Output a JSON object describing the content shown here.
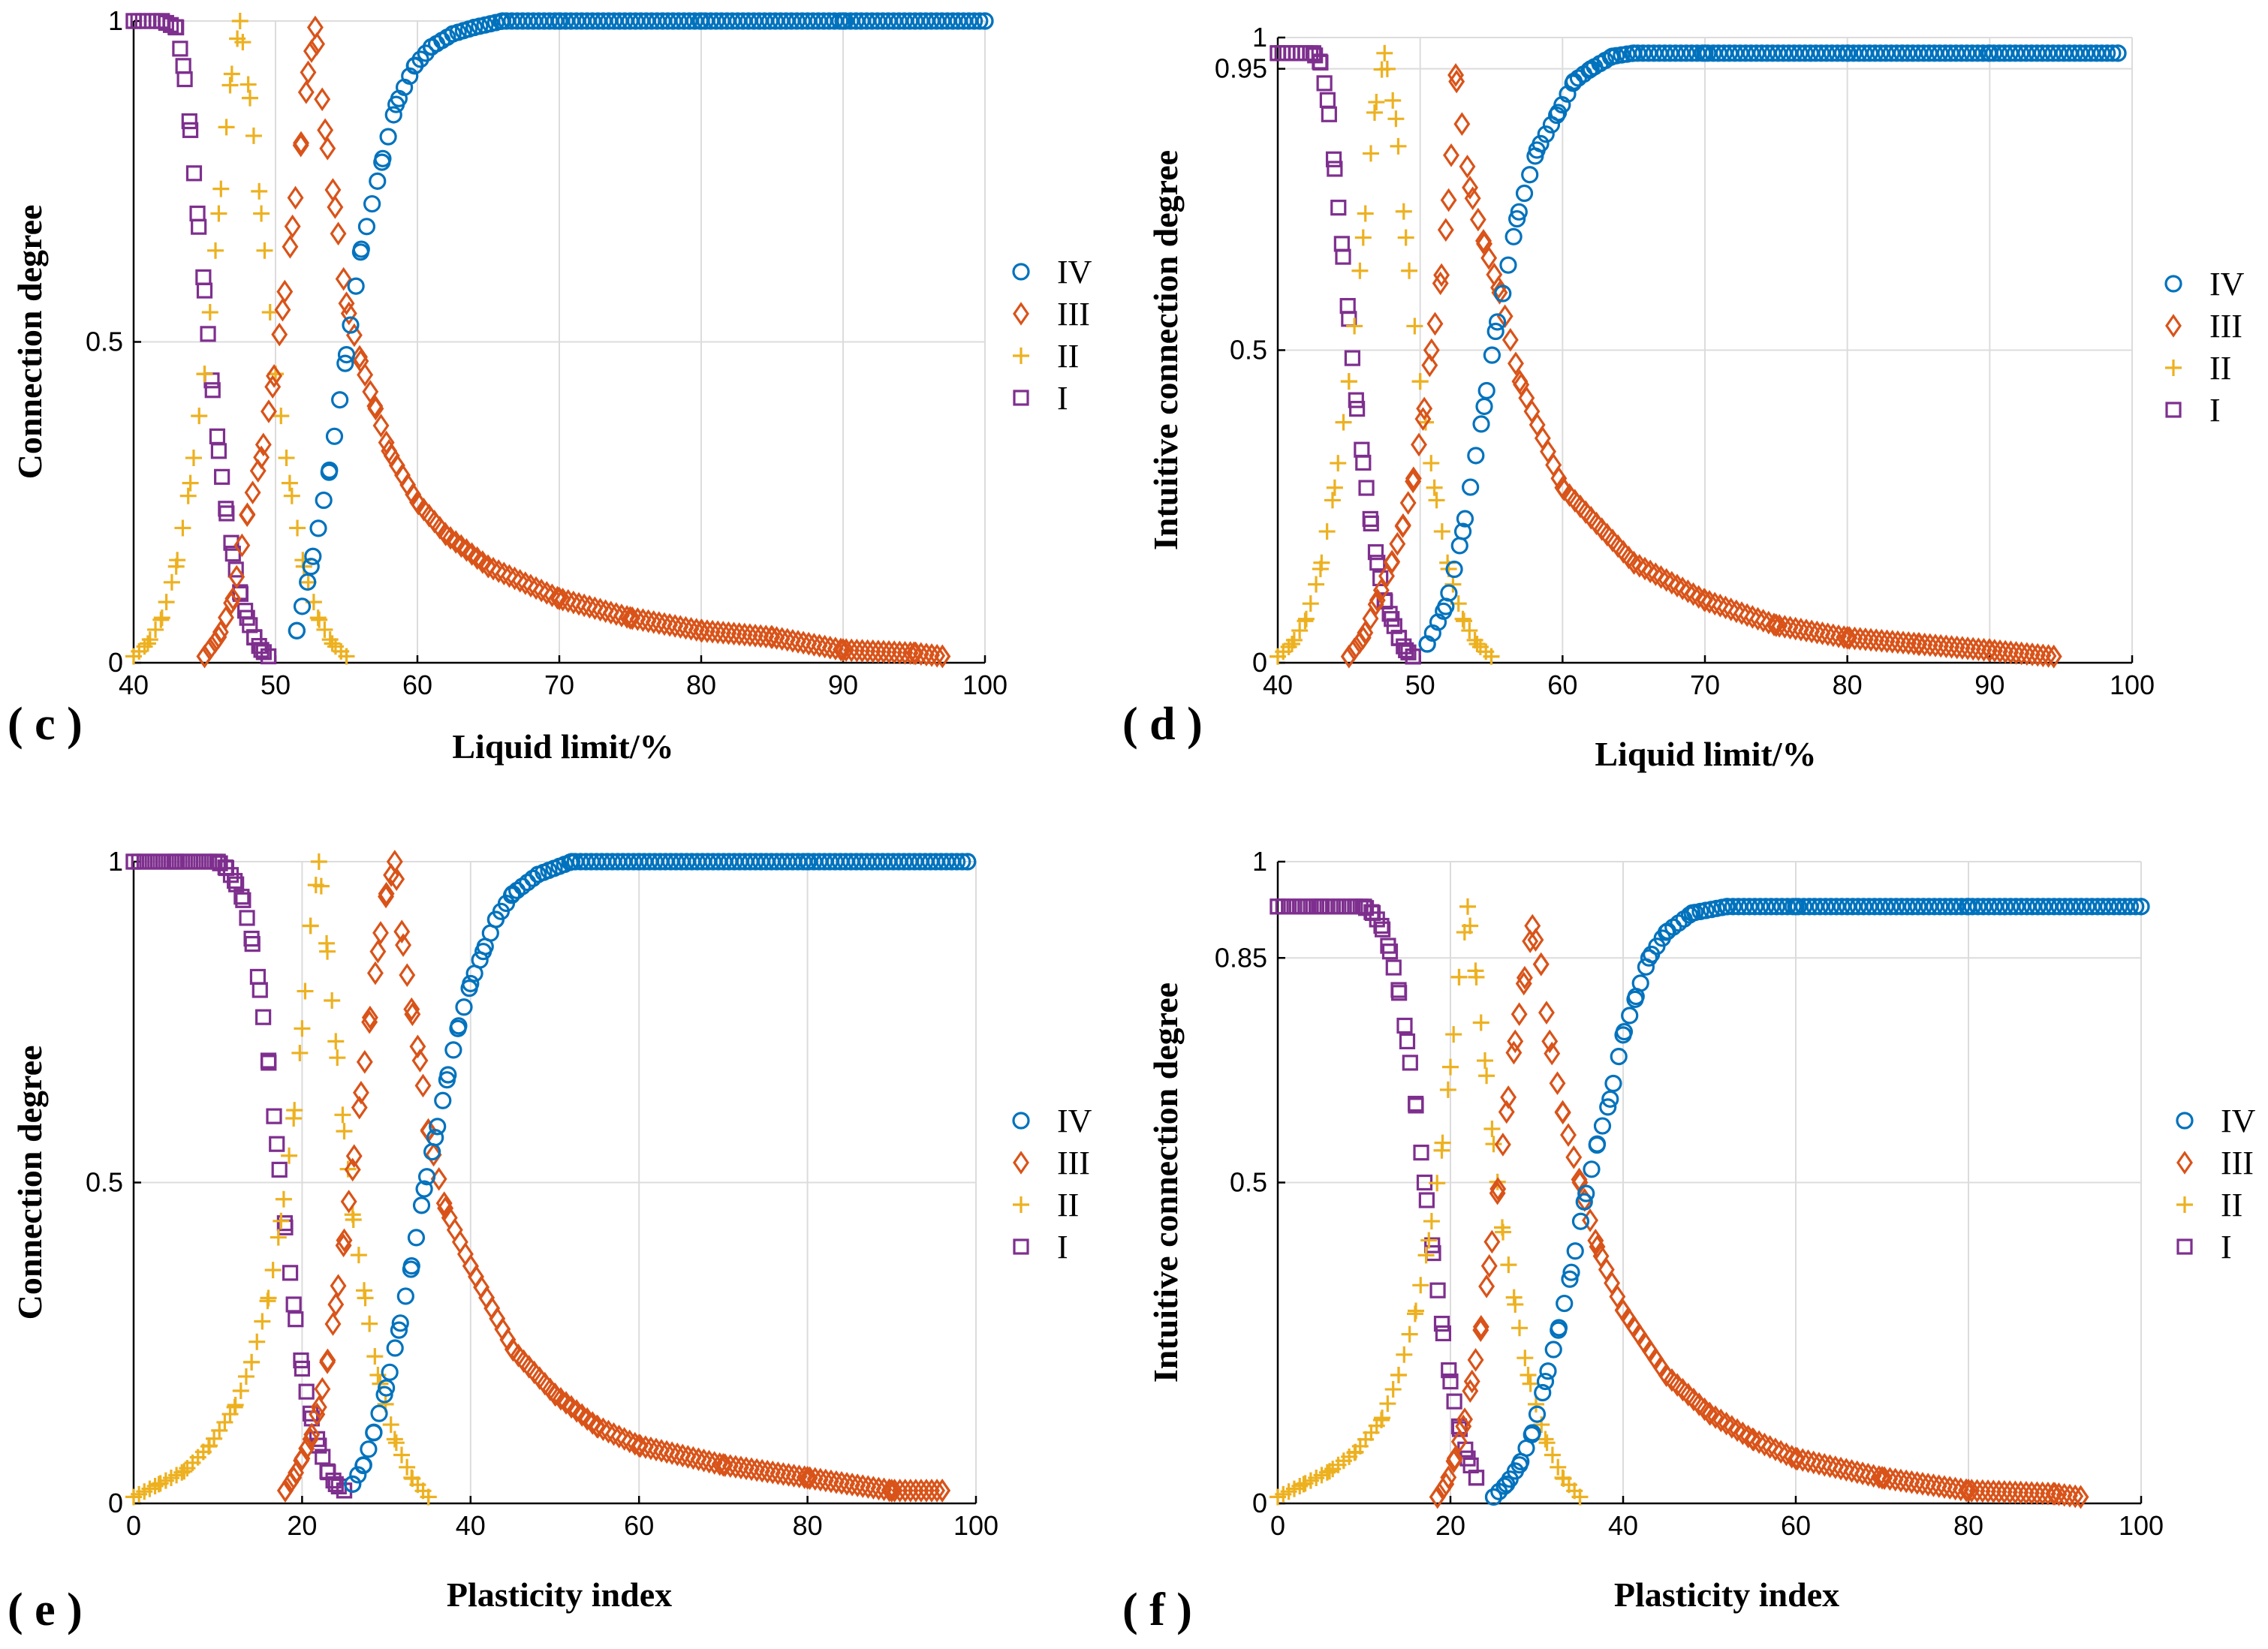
{
  "figure": {
    "legend_order": [
      "IV",
      "III",
      "II",
      "I"
    ],
    "series_styles": {
      "IV": {
        "marker": "circle",
        "color": "#0072BD"
      },
      "III": {
        "marker": "diamond",
        "color": "#D95319"
      },
      "II": {
        "marker": "plus",
        "color": "#EDB120"
      },
      "I": {
        "marker": "square",
        "color": "#7E2F8E"
      }
    }
  },
  "chart_data": [
    {
      "panel": "( c )",
      "type": "scatter",
      "xlabel": "Liquid limit/%",
      "ylabel": "Connection degree",
      "xlim": [
        40,
        100
      ],
      "ylim": [
        0,
        1
      ],
      "xticks": [
        40,
        50,
        60,
        70,
        80,
        90,
        100
      ],
      "yticks": [
        0,
        0.5,
        1
      ],
      "grid": true,
      "legend_position": "right-middle",
      "series": [
        {
          "name": "IV",
          "x": [
            51.5,
            52.5,
            53.8,
            55.0,
            56.0,
            57.5,
            58.5,
            59.8,
            61.0,
            62.5,
            64.0,
            66.0,
            70.0,
            80.0,
            90.0,
            100.0
          ],
          "y": [
            0.05,
            0.15,
            0.3,
            0.48,
            0.64,
            0.78,
            0.87,
            0.93,
            0.96,
            0.98,
            0.99,
            1.0,
            1.0,
            1.0,
            1.0,
            1.0
          ]
        },
        {
          "name": "III",
          "x": [
            45.0,
            46.0,
            47.0,
            48.0,
            49.0,
            49.8,
            50.5,
            51.2,
            51.8,
            52.3,
            52.8,
            53.5,
            54.2,
            55.0,
            56.0,
            57.0,
            58.0,
            60.0,
            62.0,
            65.0,
            70.0,
            75.0,
            80.0,
            85.0,
            90.0,
            95.0,
            97.0
          ],
          "y": [
            0.01,
            0.04,
            0.1,
            0.23,
            0.32,
            0.43,
            0.55,
            0.68,
            0.81,
            0.92,
            0.99,
            0.83,
            0.71,
            0.56,
            0.47,
            0.4,
            0.33,
            0.25,
            0.2,
            0.15,
            0.1,
            0.07,
            0.05,
            0.04,
            0.02,
            0.015,
            0.01
          ]
        },
        {
          "name": "II",
          "x": [
            40.0,
            41.0,
            42.0,
            43.0,
            44.0,
            45.0,
            46.0,
            46.8,
            47.5,
            48.2,
            49.0,
            50.0,
            51.0,
            52.0,
            53.0,
            54.0,
            55.0
          ],
          "y": [
            0.01,
            0.03,
            0.07,
            0.15,
            0.28,
            0.45,
            0.7,
            0.9,
            1.0,
            0.88,
            0.7,
            0.45,
            0.28,
            0.15,
            0.07,
            0.03,
            0.01
          ]
        },
        {
          "name": "I",
          "x": [
            40.0,
            42.0,
            43.0,
            43.5,
            44.0,
            44.5,
            45.0,
            45.5,
            46.0,
            46.5,
            47.0,
            47.5,
            48.0,
            48.5,
            49.0,
            49.5
          ],
          "y": [
            1.0,
            1.0,
            0.99,
            0.93,
            0.83,
            0.7,
            0.58,
            0.44,
            0.33,
            0.24,
            0.17,
            0.11,
            0.07,
            0.04,
            0.02,
            0.01
          ]
        }
      ]
    },
    {
      "panel": "( d )",
      "type": "scatter",
      "xlabel": "Liquid limit/%",
      "ylabel": "Intuitive connection degree",
      "xlim": [
        40,
        100
      ],
      "ylim": [
        0,
        1
      ],
      "xticks": [
        40,
        50,
        60,
        70,
        80,
        90,
        100
      ],
      "yticks": [
        0,
        0.5,
        0.95,
        1
      ],
      "grid": true,
      "legend_position": "right-middle",
      "series": [
        {
          "name": "IV",
          "x": [
            50.5,
            51.8,
            53.0,
            54.5,
            55.3,
            56.8,
            58.2,
            59.7,
            60.8,
            62.0,
            63.5,
            65.0,
            70.0,
            80.0,
            90.0,
            99.0
          ],
          "y": [
            0.03,
            0.09,
            0.21,
            0.41,
            0.53,
            0.71,
            0.82,
            0.88,
            0.93,
            0.95,
            0.97,
            0.975,
            0.975,
            0.975,
            0.975,
            0.975
          ]
        },
        {
          "name": "III",
          "x": [
            45.0,
            46.0,
            47.0,
            48.0,
            48.8,
            49.5,
            50.2,
            50.8,
            51.5,
            52.0,
            52.5,
            53.5,
            54.5,
            55.5,
            57.0,
            60.0,
            65.0,
            70.0,
            75.0,
            80.0,
            85.0,
            90.0,
            94.5
          ],
          "y": [
            0.01,
            0.04,
            0.1,
            0.16,
            0.22,
            0.29,
            0.39,
            0.5,
            0.62,
            0.74,
            0.94,
            0.76,
            0.67,
            0.6,
            0.45,
            0.28,
            0.16,
            0.1,
            0.06,
            0.04,
            0.03,
            0.02,
            0.01
          ]
        },
        {
          "name": "II",
          "x": [
            40.0,
            41.0,
            42.0,
            43.0,
            44.0,
            45.0,
            46.0,
            46.8,
            47.5,
            48.3,
            49.0,
            50.0,
            51.0,
            52.0,
            53.0,
            54.0,
            55.0
          ],
          "y": [
            0.01,
            0.03,
            0.07,
            0.15,
            0.28,
            0.45,
            0.68,
            0.88,
            0.975,
            0.87,
            0.68,
            0.45,
            0.28,
            0.15,
            0.07,
            0.03,
            0.01
          ]
        },
        {
          "name": "I",
          "x": [
            40.0,
            42.5,
            43.0,
            43.5,
            44.0,
            44.5,
            45.0,
            45.5,
            46.0,
            46.5,
            47.0,
            47.5,
            48.0,
            48.5,
            49.0,
            49.5
          ],
          "y": [
            0.975,
            0.975,
            0.96,
            0.9,
            0.79,
            0.67,
            0.55,
            0.42,
            0.32,
            0.23,
            0.16,
            0.1,
            0.07,
            0.04,
            0.02,
            0.01
          ]
        }
      ]
    },
    {
      "panel": "( e )",
      "type": "scatter",
      "xlabel": "Plasticity index",
      "ylabel": "Connection degree",
      "xlim": [
        0,
        100
      ],
      "ylim": [
        0,
        1
      ],
      "xticks": [
        0,
        20,
        40,
        60,
        80,
        100
      ],
      "yticks": [
        0,
        0.5,
        1
      ],
      "grid": true,
      "legend_position": "right-middle",
      "series": [
        {
          "name": "IV",
          "x": [
            26.0,
            27.3,
            28.5,
            30.0,
            31.5,
            33.0,
            34.5,
            35.8,
            37.2,
            38.5,
            40.0,
            41.5,
            43.0,
            45.0,
            48.0,
            52.0,
            60.0,
            80.0,
            99.0
          ],
          "y": [
            0.03,
            0.06,
            0.11,
            0.18,
            0.27,
            0.37,
            0.49,
            0.57,
            0.66,
            0.74,
            0.81,
            0.86,
            0.91,
            0.95,
            0.98,
            1.0,
            1.0,
            1.0,
            1.0
          ]
        },
        {
          "name": "III",
          "x": [
            18.0,
            19.0,
            20.0,
            21.0,
            22.0,
            23.0,
            24.0,
            25.0,
            26.0,
            27.0,
            28.0,
            29.0,
            30.0,
            31.0,
            32.0,
            33.0,
            34.0,
            35.0,
            37.0,
            40.0,
            45.0,
            50.0,
            55.0,
            60.0,
            70.0,
            80.0,
            90.0,
            96.0
          ],
          "y": [
            0.02,
            0.04,
            0.07,
            0.1,
            0.15,
            0.22,
            0.31,
            0.41,
            0.52,
            0.64,
            0.75,
            0.86,
            0.95,
            1.0,
            0.87,
            0.77,
            0.69,
            0.58,
            0.46,
            0.37,
            0.24,
            0.17,
            0.12,
            0.09,
            0.06,
            0.04,
            0.02,
            0.02
          ]
        },
        {
          "name": "II",
          "x": [
            0.0,
            3.0,
            6.0,
            9.0,
            12.0,
            14.0,
            16.0,
            17.5,
            19.0,
            20.0,
            21.0,
            22.0,
            23.0,
            24.0,
            25.0,
            26.0,
            27.5,
            29.0,
            31.0,
            33.0,
            35.0
          ],
          "y": [
            0.01,
            0.03,
            0.05,
            0.09,
            0.15,
            0.22,
            0.32,
            0.44,
            0.6,
            0.74,
            0.9,
            1.0,
            0.86,
            0.72,
            0.58,
            0.45,
            0.32,
            0.2,
            0.1,
            0.04,
            0.01
          ]
        },
        {
          "name": "I",
          "x": [
            0.0,
            5.0,
            10.0,
            11.0,
            12.0,
            13.0,
            14.0,
            15.0,
            16.0,
            17.0,
            18.0,
            19.0,
            20.0,
            21.0,
            22.0,
            23.0,
            24.0,
            25.0
          ],
          "y": [
            1.0,
            1.0,
            1.0,
            0.99,
            0.97,
            0.94,
            0.88,
            0.8,
            0.69,
            0.56,
            0.43,
            0.31,
            0.21,
            0.14,
            0.09,
            0.05,
            0.03,
            0.02
          ]
        }
      ]
    },
    {
      "panel": "( f )",
      "type": "scatter",
      "xlabel": "Plasticity index",
      "ylabel": "Intuitive connection degree",
      "xlim": [
        0,
        100
      ],
      "ylim": [
        0,
        1
      ],
      "xticks": [
        0,
        20,
        40,
        60,
        80,
        100
      ],
      "yticks": [
        0,
        0.5,
        0.85,
        1
      ],
      "grid": true,
      "legend_position": "right-middle",
      "series": [
        {
          "name": "IV",
          "x": [
            25.0,
            26.5,
            28.0,
            29.5,
            31.0,
            32.5,
            34.0,
            35.5,
            37.0,
            38.5,
            40.0,
            41.5,
            43.0,
            45.0,
            48.0,
            52.0,
            60.0,
            80.0,
            100.0
          ],
          "y": [
            0.01,
            0.03,
            0.06,
            0.11,
            0.19,
            0.27,
            0.36,
            0.47,
            0.56,
            0.63,
            0.73,
            0.79,
            0.85,
            0.89,
            0.92,
            0.93,
            0.93,
            0.93,
            0.93
          ]
        },
        {
          "name": "III",
          "x": [
            18.5,
            19.5,
            20.5,
            21.5,
            22.5,
            23.5,
            24.5,
            25.5,
            26.5,
            27.5,
            28.5,
            29.5,
            30.5,
            31.5,
            33.0,
            35.0,
            37.0,
            40.0,
            45.0,
            50.0,
            55.0,
            60.0,
            70.0,
            80.0,
            90.0,
            93.0
          ],
          "y": [
            0.01,
            0.03,
            0.07,
            0.12,
            0.19,
            0.27,
            0.37,
            0.49,
            0.61,
            0.72,
            0.81,
            0.9,
            0.84,
            0.72,
            0.61,
            0.5,
            0.4,
            0.3,
            0.2,
            0.14,
            0.1,
            0.07,
            0.04,
            0.02,
            0.015,
            0.01
          ]
        },
        {
          "name": "II",
          "x": [
            0.0,
            3.0,
            6.0,
            9.0,
            12.0,
            14.0,
            16.0,
            17.5,
            19.0,
            20.0,
            21.0,
            22.0,
            23.0,
            24.0,
            25.0,
            26.0,
            27.5,
            29.0,
            31.0,
            33.0,
            35.0
          ],
          "y": [
            0.01,
            0.03,
            0.05,
            0.08,
            0.13,
            0.2,
            0.3,
            0.41,
            0.55,
            0.68,
            0.82,
            0.93,
            0.82,
            0.69,
            0.56,
            0.43,
            0.31,
            0.2,
            0.1,
            0.04,
            0.01
          ]
        },
        {
          "name": "I",
          "x": [
            0.0,
            5.0,
            10.0,
            11.0,
            12.0,
            13.0,
            14.0,
            15.0,
            16.0,
            17.0,
            18.0,
            19.0,
            20.0,
            21.0,
            22.0,
            23.0
          ],
          "y": [
            0.93,
            0.93,
            0.93,
            0.92,
            0.9,
            0.86,
            0.8,
            0.72,
            0.62,
            0.5,
            0.39,
            0.28,
            0.19,
            0.12,
            0.07,
            0.04
          ]
        }
      ]
    }
  ]
}
